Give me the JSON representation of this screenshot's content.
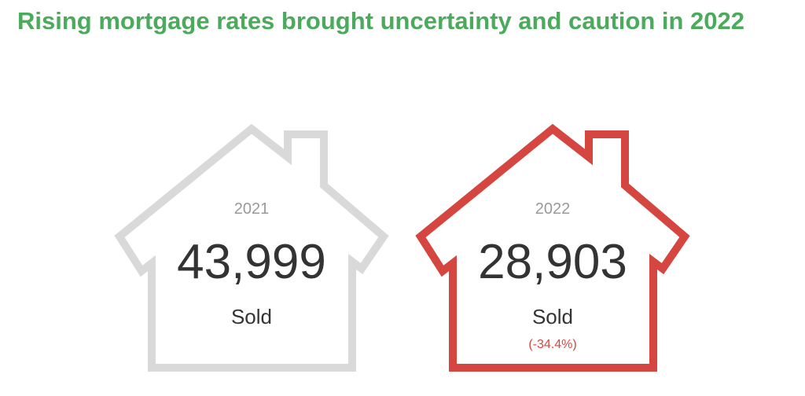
{
  "title": "Rising mortgage rates brought uncertainty and caution in 2022",
  "colors": {
    "title": "#4caa5c",
    "house_2021": "#d9d9d9",
    "house_2022": "#d4463f"
  },
  "houses": [
    {
      "year": "2021",
      "value": "43,999",
      "label": "Sold",
      "change": ""
    },
    {
      "year": "2022",
      "value": "28,903",
      "label": "Sold",
      "change": "(-34.4%)"
    }
  ]
}
